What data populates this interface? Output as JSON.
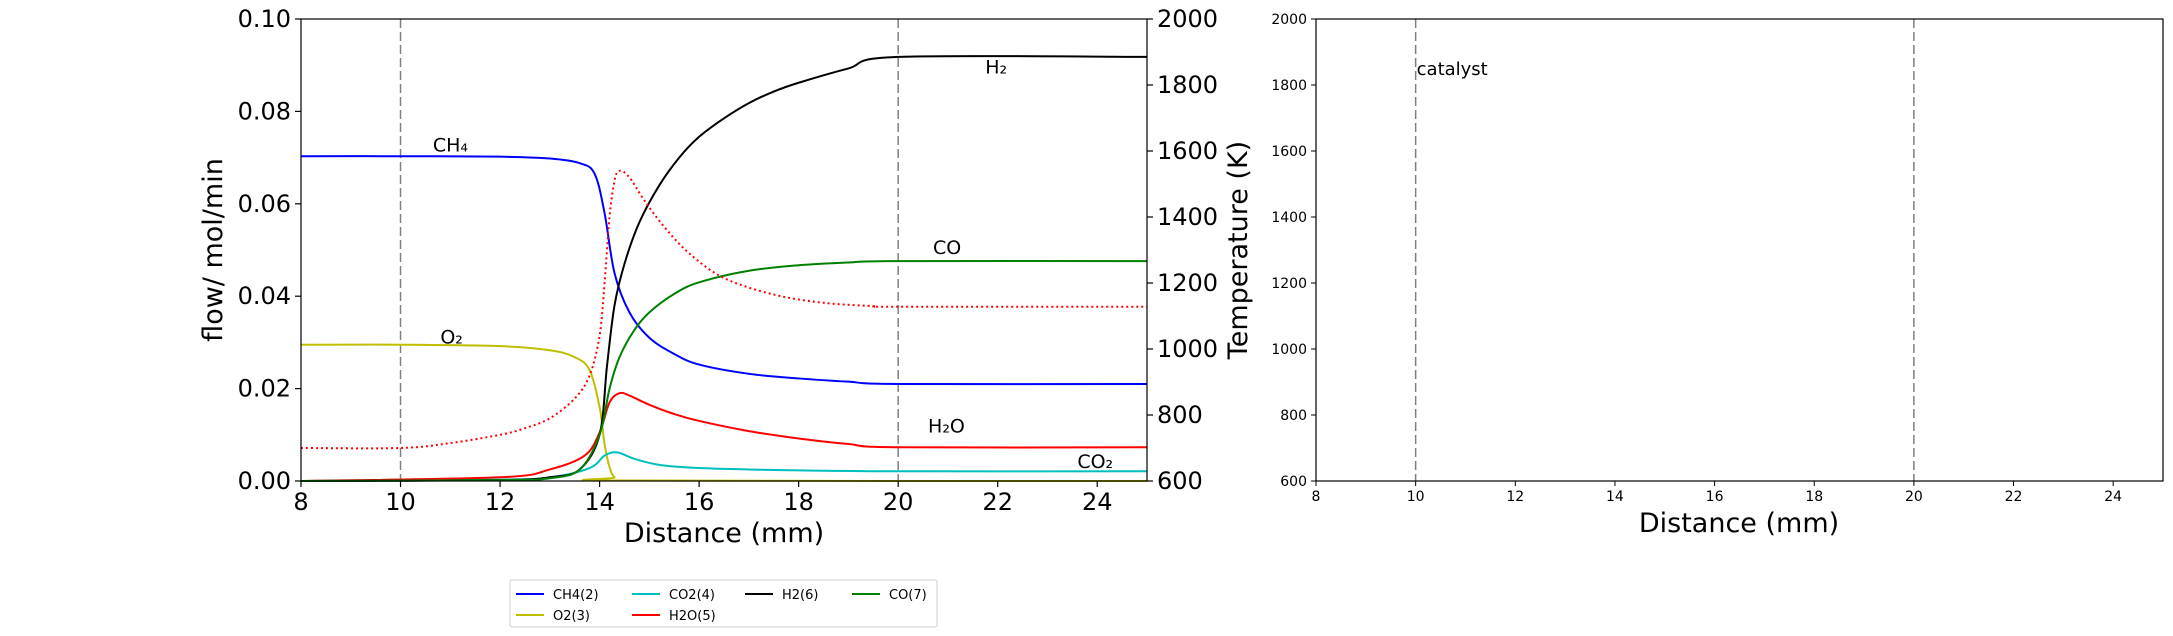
{
  "chart_data": [
    {
      "type": "line",
      "xlabel": "Distance (mm)",
      "ylabel": "flow/ mol/min",
      "ylabel_right": "Temperature (K)",
      "xlim": [
        8,
        25
      ],
      "ylim": [
        0,
        0.1
      ],
      "ylim_right": [
        600,
        2000
      ],
      "xticks": [
        "8",
        "10",
        "12",
        "14",
        "16",
        "18",
        "20",
        "22",
        "24"
      ],
      "yticks": [
        "0.00",
        "0.02",
        "0.04",
        "0.06",
        "0.08",
        "0.10"
      ],
      "yticks_right": [
        "600",
        "800",
        "1000",
        "1200",
        "1400",
        "1600",
        "1800",
        "2000"
      ],
      "vlines": [
        10,
        20
      ],
      "grid": false,
      "series": [
        {
          "name": "CH4(2)",
          "color": "#0000ff",
          "x": [
            8,
            10,
            12,
            13,
            13.6,
            13.9,
            14.1,
            14.3,
            14.6,
            15,
            15.5,
            16,
            17,
            18,
            19,
            20,
            25
          ],
          "y": [
            0.0703,
            0.0703,
            0.0702,
            0.0698,
            0.0688,
            0.0665,
            0.058,
            0.045,
            0.0365,
            0.031,
            0.0275,
            0.0252,
            0.0232,
            0.0222,
            0.0215,
            0.021,
            0.021
          ]
        },
        {
          "name": "O2(3)",
          "color": "#bfbf00",
          "x": [
            8,
            10,
            12,
            13,
            13.5,
            13.8,
            14,
            14.1,
            14.2,
            14.3,
            14.5,
            25
          ],
          "y": [
            0.0295,
            0.0295,
            0.0292,
            0.0283,
            0.0268,
            0.024,
            0.016,
            0.008,
            0.003,
            0.0008,
            0.0001,
            0.0
          ]
        },
        {
          "name": "CO2(4)",
          "color": "#00bfbf",
          "x": [
            8,
            12,
            13,
            13.8,
            14.1,
            14.35,
            14.7,
            15.2,
            16,
            17,
            18,
            20,
            25
          ],
          "y": [
            0.0,
            0.0003,
            0.0008,
            0.0028,
            0.0055,
            0.0062,
            0.0048,
            0.0035,
            0.0028,
            0.0025,
            0.0023,
            0.0021,
            0.0021
          ]
        },
        {
          "name": "H2O(5)",
          "color": "#ff0000",
          "x": [
            8,
            12,
            13,
            13.7,
            14.0,
            14.2,
            14.4,
            14.6,
            15,
            15.5,
            16,
            17,
            18,
            19,
            20,
            25
          ],
          "y": [
            0.0,
            0.0008,
            0.0025,
            0.0055,
            0.0105,
            0.017,
            0.019,
            0.0185,
            0.0165,
            0.0145,
            0.013,
            0.0108,
            0.0092,
            0.008,
            0.0073,
            0.0073
          ]
        },
        {
          "name": "H2(6)",
          "color": "#000000",
          "x": [
            8,
            12,
            13,
            13.6,
            14.0,
            14.15,
            14.3,
            14.5,
            14.8,
            15.2,
            15.6,
            16,
            16.5,
            17,
            17.5,
            18,
            19,
            20,
            25
          ],
          "y": [
            0.0,
            0.0002,
            0.0008,
            0.0025,
            0.01,
            0.025,
            0.038,
            0.047,
            0.056,
            0.064,
            0.07,
            0.0745,
            0.0785,
            0.0818,
            0.0843,
            0.0862,
            0.0893,
            0.0918,
            0.0918
          ]
        },
        {
          "name": "CO(7)",
          "color": "#008000",
          "x": [
            8,
            12,
            13,
            13.6,
            14.0,
            14.2,
            14.4,
            14.7,
            15,
            15.5,
            16,
            17,
            18,
            19,
            20,
            25
          ],
          "y": [
            0.0,
            0.0002,
            0.0006,
            0.0025,
            0.01,
            0.02,
            0.0268,
            0.0327,
            0.0365,
            0.0405,
            0.043,
            0.0455,
            0.0467,
            0.0473,
            0.0476,
            0.0476
          ]
        },
        {
          "color": "#ff0000",
          "style": "dotted",
          "axis": "right",
          "x": [
            8,
            10,
            11,
            12,
            12.5,
            13,
            13.5,
            13.8,
            14.0,
            14.1,
            14.2,
            14.3,
            14.4,
            14.6,
            14.9,
            15.3,
            15.8,
            16.5,
            17.5,
            18.5,
            19.5,
            20,
            25
          ],
          "y": [
            700,
            700,
            715,
            740,
            760,
            790,
            850,
            920,
            1040,
            1200,
            1400,
            1510,
            1540,
            1520,
            1450,
            1370,
            1290,
            1215,
            1165,
            1140,
            1130,
            1128,
            1128
          ]
        }
      ],
      "annotations": [
        {
          "text": "CH₄",
          "x": 10.65,
          "y": 0.0713,
          "color": "#0000ff"
        },
        {
          "text": "O₂",
          "x": 10.8,
          "y": 0.0298,
          "color": "#bfbf00"
        },
        {
          "text": "H₂",
          "x": 21.75,
          "y": 0.0882,
          "color": "#000000"
        },
        {
          "text": "CO",
          "x": 20.7,
          "y": 0.0491,
          "color": "#008000"
        },
        {
          "text": "H₂O",
          "x": 20.6,
          "y": 0.0105,
          "color": "#ff0000"
        },
        {
          "text": "CO₂",
          "x": 23.6,
          "y": 0.0028,
          "color": "#00bfbf"
        }
      ]
    },
    {
      "type": "line",
      "xlabel": "Distance (mm)",
      "xlim": [
        8,
        25
      ],
      "ylim": [
        600,
        2000
      ],
      "xticks": [
        "8",
        "10",
        "12",
        "14",
        "16",
        "18",
        "20",
        "22",
        "24"
      ],
      "yticks": [
        "600",
        "800",
        "1000",
        "1200",
        "1400",
        "1600",
        "1800",
        "2000"
      ],
      "vlines": [
        10,
        20
      ],
      "grid": false,
      "series": [],
      "annotations": [
        {
          "text": "catalyst",
          "x": 10,
          "y": 1830,
          "color": "#000000"
        }
      ]
    }
  ],
  "legend": {
    "placement": "bottom",
    "entries": [
      {
        "label": "CH4(2)",
        "color": "#0000ff"
      },
      {
        "label": "CO2(4)",
        "color": "#00bfbf"
      },
      {
        "label": "H2(6)",
        "color": "#000000"
      },
      {
        "label": "CO(7)",
        "color": "#008000"
      },
      {
        "label": "O2(3)",
        "color": "#bfbf00"
      },
      {
        "label": "H2O(5)",
        "color": "#ff0000"
      }
    ]
  }
}
